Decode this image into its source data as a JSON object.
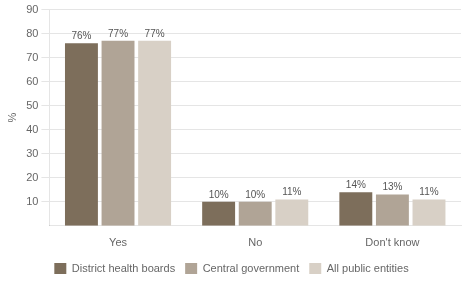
{
  "chart_data": {
    "type": "bar",
    "categories": [
      "Yes",
      "No",
      "Don't know"
    ],
    "series": [
      {
        "name": "District health boards",
        "color": "#7d6e5b",
        "values": [
          76,
          10,
          14
        ],
        "value_labels": [
          "76%",
          "10%",
          "14%"
        ]
      },
      {
        "name": "Central government",
        "color": "#b0a496",
        "values": [
          77,
          10,
          13
        ],
        "value_labels": [
          "77%",
          "10%",
          "13%"
        ]
      },
      {
        "name": "All public entities",
        "color": "#d8d0c6",
        "values": [
          77,
          11,
          11
        ],
        "value_labels": [
          "77%",
          "11%",
          "11%"
        ]
      }
    ],
    "ylabel": "%",
    "ylim": [
      0,
      90
    ],
    "yticks": [
      10,
      20,
      30,
      40,
      50,
      60,
      70,
      80,
      90
    ],
    "grid": true,
    "legend": "bottom",
    "data_labels": true
  }
}
